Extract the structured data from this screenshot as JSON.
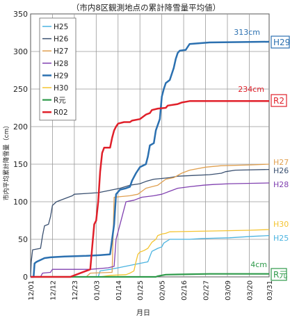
{
  "chart_data": {
    "type": "line",
    "title": "（市内8区観測地点の累計降雪量平均値）",
    "xlabel": "月日",
    "ylabel": "市内平均累計降雪量（cm）",
    "ylim": [
      0,
      350
    ],
    "yticks": [
      0,
      50,
      100,
      150,
      200,
      250,
      300,
      350
    ],
    "xlim": [
      0,
      120
    ],
    "x_unit": "days from Dec 1",
    "xticks": [
      {
        "label": "12/01",
        "x": 0
      },
      {
        "label": "12/12",
        "x": 11
      },
      {
        "label": "12/23",
        "x": 22
      },
      {
        "label": "01/03",
        "x": 33
      },
      {
        "label": "01/14",
        "x": 44
      },
      {
        "label": "01/25",
        "x": 55
      },
      {
        "label": "02/05",
        "x": 66
      },
      {
        "label": "02/16",
        "x": 77
      },
      {
        "label": "02/27",
        "x": 88
      },
      {
        "label": "03/09",
        "x": 99
      },
      {
        "label": "03/20",
        "x": 110
      },
      {
        "label": "03/31",
        "x": 120
      }
    ],
    "grid": true,
    "legend_position": "top-left",
    "series": [
      {
        "name": "H25",
        "color": "#4ab3e0",
        "end_label": "H25",
        "width": 1.3,
        "points": [
          [
            0,
            0
          ],
          [
            34,
            0
          ],
          [
            35,
            8
          ],
          [
            40,
            10
          ],
          [
            44,
            12
          ],
          [
            55,
            18
          ],
          [
            59,
            20
          ],
          [
            61,
            34
          ],
          [
            64,
            38
          ],
          [
            66,
            40
          ],
          [
            67,
            45
          ],
          [
            70,
            50
          ],
          [
            80,
            50
          ],
          [
            86,
            51
          ],
          [
            100,
            52
          ],
          [
            112,
            54
          ],
          [
            120,
            55
          ]
        ]
      },
      {
        "name": "H26",
        "color": "#3a5070",
        "end_label": "H26",
        "width": 1.3,
        "points": [
          [
            0,
            0
          ],
          [
            0.3,
            20
          ],
          [
            1,
            36
          ],
          [
            5,
            38
          ],
          [
            6,
            55
          ],
          [
            7,
            68
          ],
          [
            9,
            70
          ],
          [
            10,
            80
          ],
          [
            11,
            95
          ],
          [
            13,
            100
          ],
          [
            18,
            105
          ],
          [
            21,
            108
          ],
          [
            22,
            110
          ],
          [
            34,
            112
          ],
          [
            45,
            118
          ],
          [
            50,
            122
          ],
          [
            55,
            124
          ],
          [
            58,
            127
          ],
          [
            62,
            130
          ],
          [
            70,
            132
          ],
          [
            74,
            134
          ],
          [
            82,
            135
          ],
          [
            90,
            136
          ],
          [
            96,
            138
          ],
          [
            98,
            140
          ],
          [
            103,
            142
          ],
          [
            120,
            143
          ]
        ]
      },
      {
        "name": "H27",
        "color": "#e0a050",
        "end_label": "H27",
        "width": 1.3,
        "points": [
          [
            0,
            0
          ],
          [
            28,
            0
          ],
          [
            30,
            5
          ],
          [
            41,
            6
          ],
          [
            42,
            106
          ],
          [
            50,
            108
          ],
          [
            54,
            110
          ],
          [
            56,
            114
          ],
          [
            58,
            118
          ],
          [
            61,
            120
          ],
          [
            64,
            122
          ],
          [
            66,
            126
          ],
          [
            68,
            130
          ],
          [
            72,
            132
          ],
          [
            76,
            138
          ],
          [
            80,
            142
          ],
          [
            88,
            146
          ],
          [
            96,
            148
          ],
          [
            110,
            149
          ],
          [
            120,
            150
          ]
        ]
      },
      {
        "name": "H28",
        "color": "#8040b0",
        "end_label": "H28",
        "width": 1.3,
        "points": [
          [
            0,
            0
          ],
          [
            5,
            0
          ],
          [
            6,
            5
          ],
          [
            10,
            6
          ],
          [
            11,
            10
          ],
          [
            29,
            10
          ],
          [
            30,
            10
          ],
          [
            39,
            12
          ],
          [
            42,
            14
          ],
          [
            43,
            50
          ],
          [
            44,
            60
          ],
          [
            46,
            80
          ],
          [
            47,
            90
          ],
          [
            48,
            100
          ],
          [
            52,
            102
          ],
          [
            56,
            106
          ],
          [
            62,
            108
          ],
          [
            66,
            110
          ],
          [
            70,
            114
          ],
          [
            74,
            118
          ],
          [
            80,
            120
          ],
          [
            87,
            122
          ],
          [
            92,
            123
          ],
          [
            100,
            124
          ],
          [
            120,
            125
          ]
        ]
      },
      {
        "name": "H29",
        "color": "#2b70b0",
        "end_label": "H29",
        "value_label": "313cm",
        "width": 2.5,
        "points": [
          [
            0,
            0
          ],
          [
            1.5,
            0
          ],
          [
            2,
            18
          ],
          [
            3,
            20
          ],
          [
            7,
            25
          ],
          [
            10,
            26
          ],
          [
            17,
            27
          ],
          [
            28,
            28
          ],
          [
            35,
            29
          ],
          [
            40,
            30
          ],
          [
            41,
            50
          ],
          [
            42,
            70
          ],
          [
            43,
            110
          ],
          [
            45,
            116
          ],
          [
            48,
            118
          ],
          [
            50,
            120
          ],
          [
            51,
            128
          ],
          [
            53,
            138
          ],
          [
            55,
            146
          ],
          [
            58,
            150
          ],
          [
            59,
            160
          ],
          [
            60,
            175
          ],
          [
            62,
            178
          ],
          [
            63,
            195
          ],
          [
            65,
            210
          ],
          [
            66,
            240
          ],
          [
            67,
            250
          ],
          [
            68,
            258
          ],
          [
            70,
            262
          ],
          [
            72,
            278
          ],
          [
            73,
            290
          ],
          [
            74,
            298
          ],
          [
            75,
            301
          ],
          [
            78,
            302
          ],
          [
            79,
            306
          ],
          [
            80,
            310
          ],
          [
            90,
            312
          ],
          [
            120,
            313
          ]
        ]
      },
      {
        "name": "H30",
        "color": "#f4c430",
        "end_label": "H30",
        "width": 1.3,
        "points": [
          [
            0,
            0
          ],
          [
            35,
            0
          ],
          [
            40,
            2
          ],
          [
            48,
            3
          ],
          [
            50,
            5
          ],
          [
            52,
            8
          ],
          [
            53,
            20
          ],
          [
            54,
            30
          ],
          [
            55,
            33
          ],
          [
            57,
            35
          ],
          [
            59,
            38
          ],
          [
            61,
            46
          ],
          [
            63,
            50
          ],
          [
            64,
            55
          ],
          [
            66,
            57
          ],
          [
            68,
            58
          ],
          [
            70,
            60
          ],
          [
            90,
            61
          ],
          [
            110,
            62
          ],
          [
            120,
            63
          ]
        ]
      },
      {
        "name": "R元",
        "color": "#2e9a4a",
        "end_label": "R元",
        "value_label": "4cm",
        "width": 2.2,
        "points": [
          [
            0,
            0
          ],
          [
            63,
            0
          ],
          [
            64,
            1
          ],
          [
            66,
            2
          ],
          [
            68,
            3
          ],
          [
            90,
            4
          ],
          [
            120,
            4
          ]
        ]
      },
      {
        "name": "R02",
        "color": "#e0202a",
        "end_label": "R2",
        "value_label": "234cm",
        "width": 2.5,
        "points": [
          [
            0,
            0
          ],
          [
            20,
            0
          ],
          [
            22,
            2
          ],
          [
            24,
            4
          ],
          [
            25,
            5
          ],
          [
            30,
            10
          ],
          [
            31,
            40
          ],
          [
            32,
            70
          ],
          [
            33,
            75
          ],
          [
            34,
            100
          ],
          [
            35,
            140
          ],
          [
            36,
            165
          ],
          [
            37,
            172
          ],
          [
            40,
            172
          ],
          [
            41,
            185
          ],
          [
            42,
            195
          ],
          [
            43,
            200
          ],
          [
            44,
            204
          ],
          [
            47,
            206
          ],
          [
            50,
            206
          ],
          [
            51,
            208
          ],
          [
            55,
            210
          ],
          [
            56,
            212
          ],
          [
            58,
            216
          ],
          [
            60,
            218
          ],
          [
            61,
            222
          ],
          [
            64,
            224
          ],
          [
            68,
            225
          ],
          [
            69,
            228
          ],
          [
            74,
            230
          ],
          [
            76,
            232
          ],
          [
            80,
            234
          ],
          [
            120,
            234
          ]
        ]
      }
    ]
  }
}
